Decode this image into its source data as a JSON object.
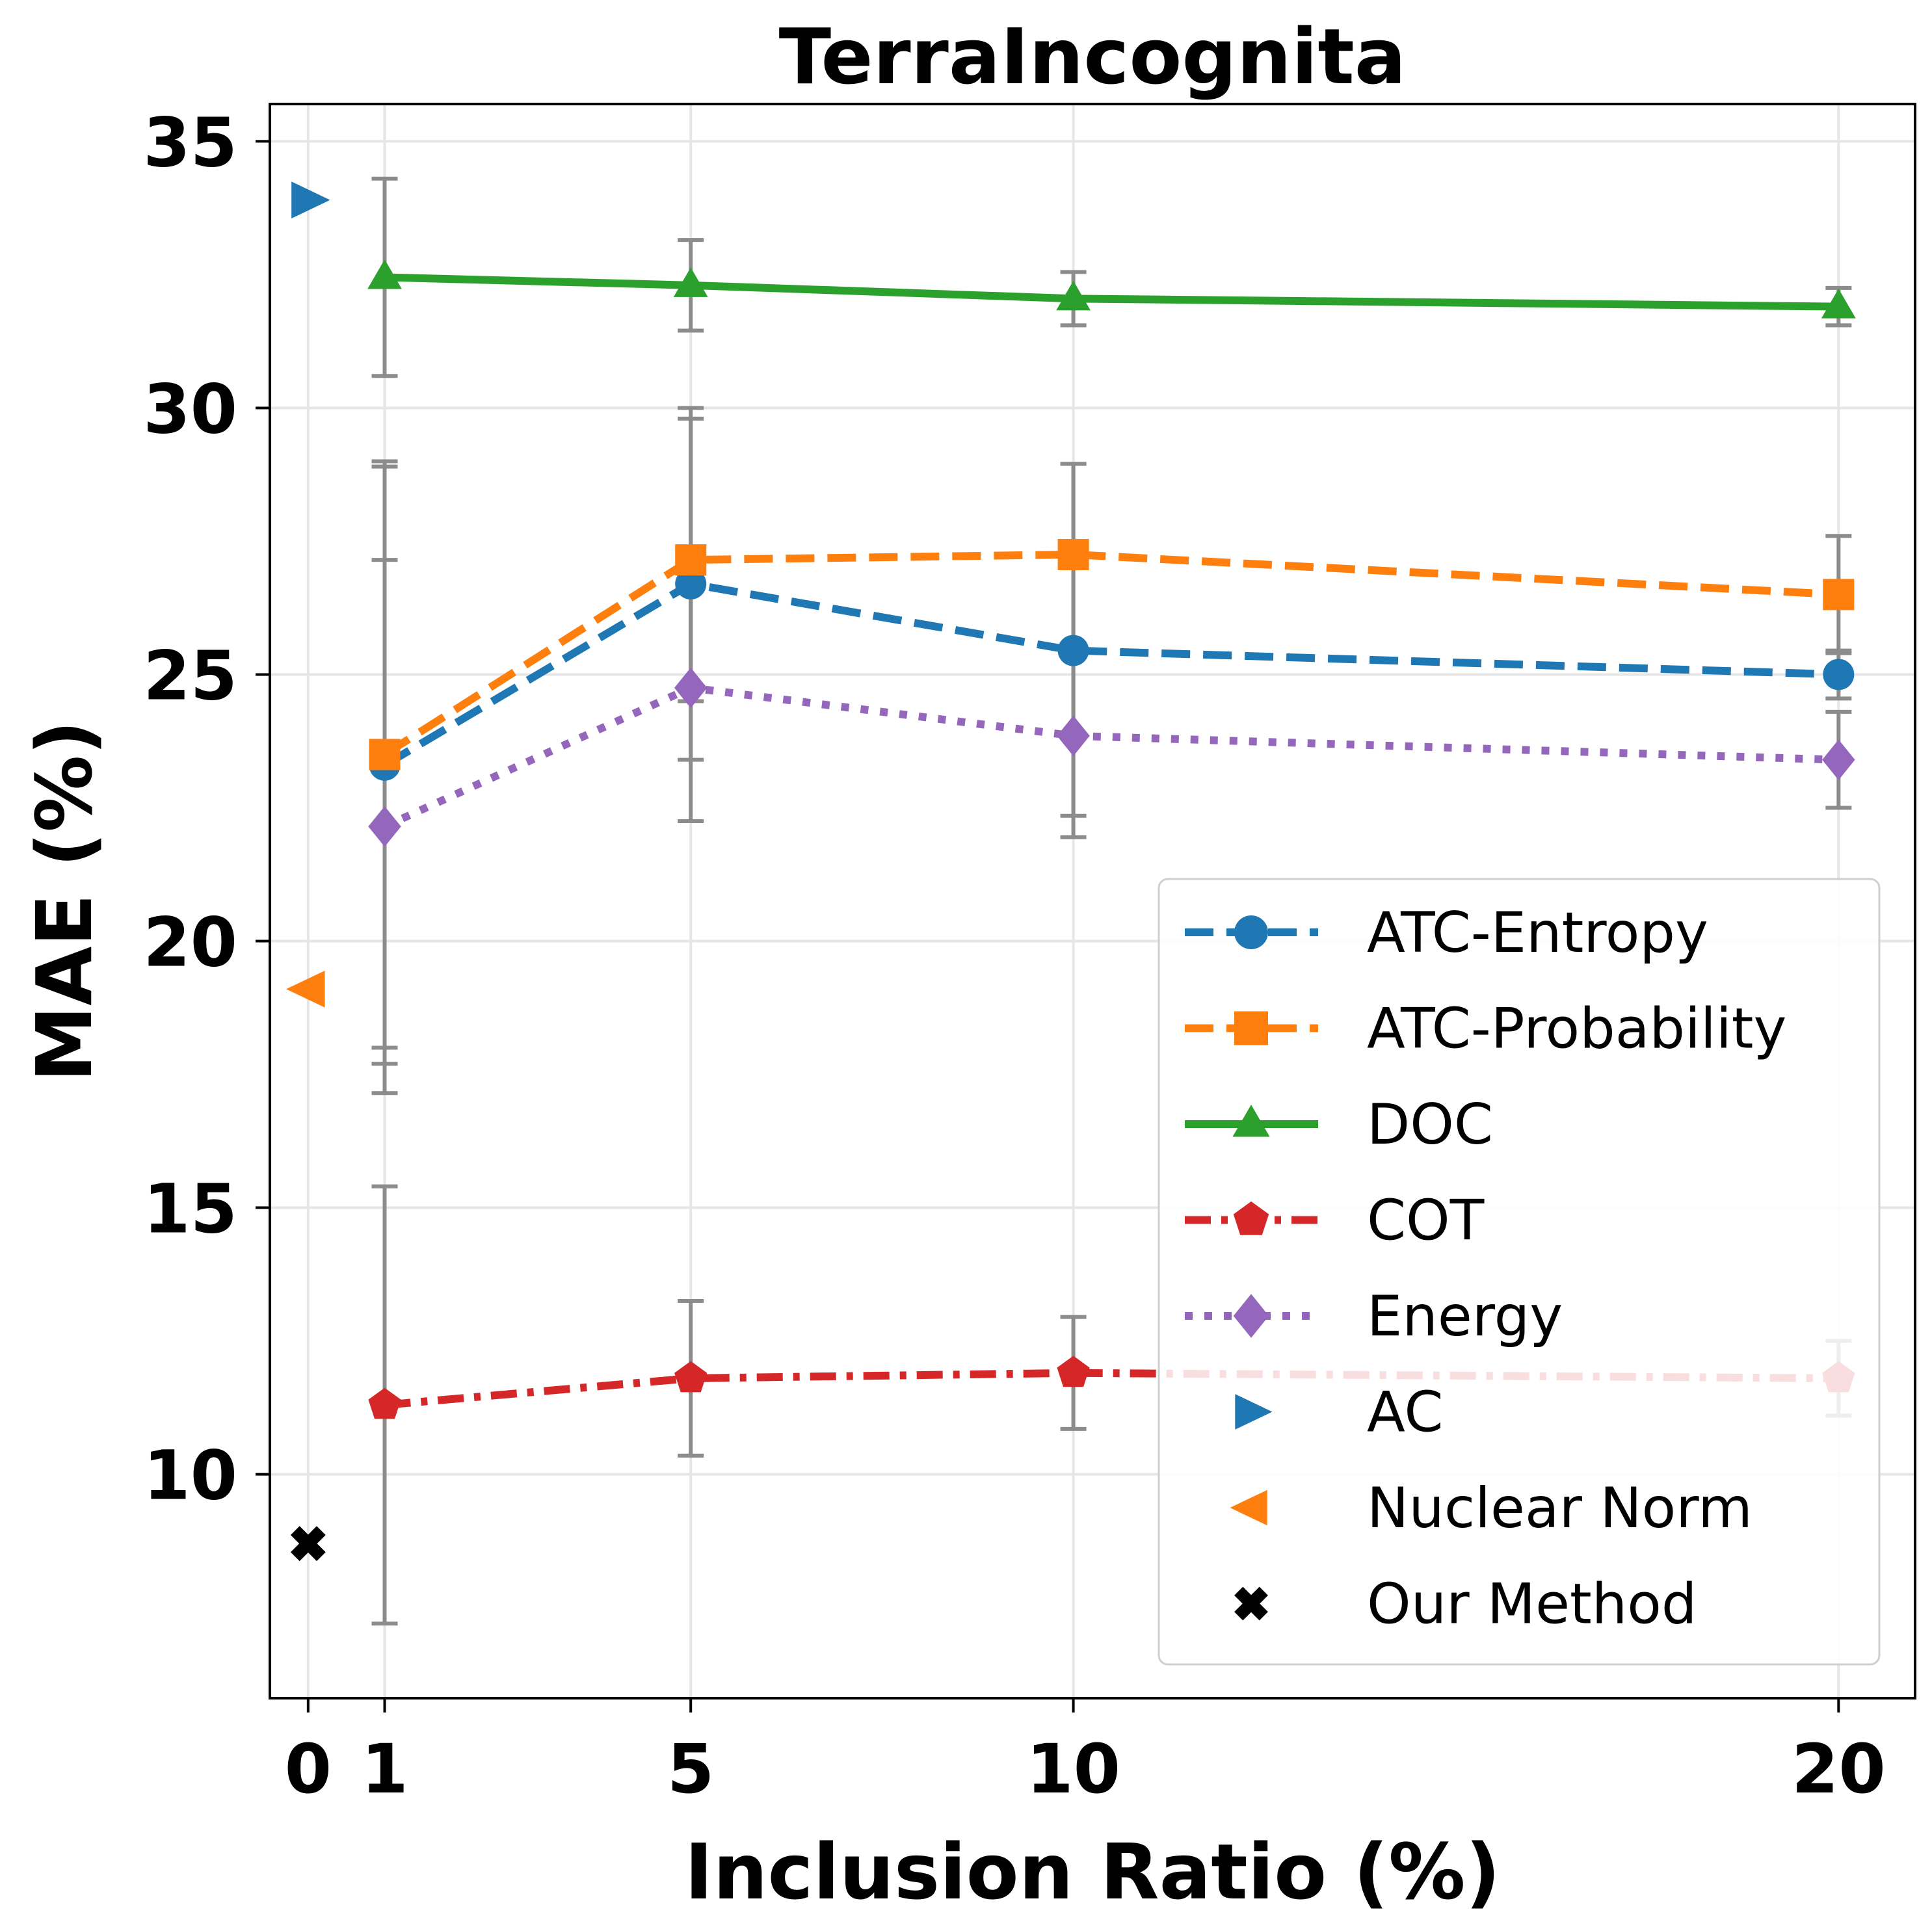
{
  "chart_data": {
    "type": "line",
    "title": "TerraIncognita",
    "xlabel": "Inclusion Ratio (%)",
    "ylabel": "MAE (%)",
    "xlim": [
      -0.5,
      21
    ],
    "ylim": [
      5.8,
      35.7
    ],
    "xticks": [
      0,
      1,
      5,
      10,
      20
    ],
    "yticks": [
      10,
      15,
      20,
      25,
      30,
      35
    ],
    "grid": true,
    "legend_position": "lower-right",
    "x": [
      1,
      5,
      10,
      20
    ],
    "series": [
      {
        "name": "ATC-Entropy",
        "color": "#1f77b4",
        "linestyle": "dashed",
        "marker": "circle",
        "values": [
          23.3,
          26.7,
          25.45,
          25.0
        ],
        "errors": [
          5.6,
          3.3,
          3.5,
          0.45
        ]
      },
      {
        "name": "ATC-Probability",
        "color": "#ff7f0e",
        "linestyle": "dashed",
        "marker": "square",
        "values": [
          23.5,
          27.15,
          27.25,
          26.5
        ],
        "errors": [
          5.5,
          2.65,
          1.7,
          1.1
        ]
      },
      {
        "name": "DOC",
        "color": "#2ca02c",
        "linestyle": "solid",
        "marker": "triangle-up",
        "values": [
          32.45,
          32.3,
          32.05,
          31.9
        ],
        "errors": [
          1.85,
          0.85,
          0.5,
          0.35
        ]
      },
      {
        "name": "COT",
        "color": "#d62728",
        "linestyle": "dashdot",
        "marker": "pentagon",
        "values": [
          11.3,
          11.8,
          11.9,
          11.8
        ],
        "errors": [
          4.1,
          1.45,
          1.05,
          0.7
        ]
      },
      {
        "name": "Energy",
        "color": "#9467bd",
        "linestyle": "dotted",
        "marker": "diamond",
        "values": [
          22.15,
          24.75,
          23.85,
          23.4
        ],
        "errors": [
          5.0,
          2.5,
          1.5,
          0.9
        ]
      }
    ],
    "single_points": [
      {
        "name": "AC",
        "color": "#1f77b4",
        "marker": "triangle-right",
        "x": 0,
        "value": 33.9
      },
      {
        "name": "Nuclear Norm",
        "color": "#ff7f0e",
        "marker": "triangle-left",
        "x": 0,
        "value": 19.1
      },
      {
        "name": "Our Method",
        "color": "#000000",
        "marker": "x-filled",
        "x": 0,
        "value": 8.7
      }
    ]
  }
}
